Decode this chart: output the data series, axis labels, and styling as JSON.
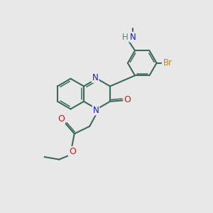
{
  "bg_color": "#e8e8e8",
  "bond_color": "#3d6b5a",
  "N_color": "#1a1acc",
  "O_color": "#cc1a1a",
  "Br_color": "#cc8800",
  "NH_color": "#4a8888",
  "lw": 1.5,
  "lw_inner": 1.1,
  "fs": 7.5,
  "xlim": [
    0,
    10
  ],
  "ylim": [
    0,
    10
  ]
}
